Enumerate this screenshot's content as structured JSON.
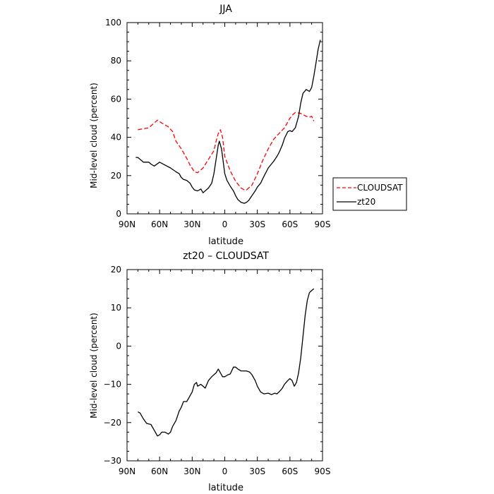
{
  "chart_data": [
    {
      "type": "line",
      "title": "JJA",
      "xlabel": "latitude",
      "ylabel": "Mid-level cloud (percent)",
      "xlim": [
        90,
        -90
      ],
      "ylim": [
        0,
        100
      ],
      "xticks": [
        90,
        60,
        30,
        0,
        -30,
        -60,
        -90
      ],
      "xtick_labels": [
        "90N",
        "60N",
        "30N",
        "0",
        "30S",
        "60S",
        "90S"
      ],
      "yticks": [
        0,
        20,
        40,
        60,
        80,
        100
      ],
      "ytick_labels": [
        "0",
        "20",
        "40",
        "60",
        "80",
        "100"
      ],
      "grid": false,
      "legend": {
        "placement": "right-outside",
        "entries": [
          "CLOUDSAT",
          "zt20"
        ]
      },
      "series": [
        {
          "name": "CLOUDSAT",
          "color": "#ff0000",
          "dash": true,
          "x": [
            80,
            75,
            70,
            65,
            62,
            58,
            55,
            52,
            48,
            45,
            40,
            35,
            32,
            28,
            25,
            20,
            15,
            10,
            8,
            6,
            4,
            2,
            0,
            -5,
            -10,
            -15,
            -18,
            -20,
            -25,
            -30,
            -35,
            -40,
            -45,
            -50,
            -55,
            -60,
            -63,
            -65,
            -70,
            -75,
            -78,
            -80,
            -82
          ],
          "y": [
            44,
            44.5,
            45,
            47.5,
            49,
            47.5,
            46.5,
            45.5,
            43,
            38,
            34,
            29,
            25.5,
            22,
            21.5,
            24,
            28.5,
            33,
            38,
            42,
            44,
            40,
            30,
            22.5,
            17,
            13.5,
            12.5,
            12.5,
            15,
            21,
            28,
            34,
            39,
            42,
            45,
            50,
            52,
            53,
            52.5,
            51,
            50.5,
            51,
            48.5
          ]
        },
        {
          "name": "zt20",
          "color": "#000000",
          "dash": false,
          "x": [
            82,
            80,
            75,
            70,
            68,
            65,
            60,
            55,
            50,
            45,
            42,
            40,
            38,
            35,
            32,
            30,
            28,
            25,
            22,
            20,
            15,
            12,
            10,
            8,
            6,
            5,
            3,
            0,
            -2,
            -5,
            -8,
            -10,
            -12,
            -15,
            -18,
            -20,
            -22,
            -25,
            -28,
            -30,
            -33,
            -35,
            -40,
            -45,
            -48,
            -50,
            -53,
            -55,
            -58,
            -60,
            -62,
            -65,
            -68,
            -70,
            -72,
            -75,
            -78,
            -80,
            -82,
            -84,
            -86,
            -88
          ],
          "y": [
            29.5,
            29.5,
            27,
            27,
            26,
            25,
            27,
            25.5,
            24,
            22,
            21,
            19,
            18,
            17.5,
            16,
            14,
            12.5,
            12,
            13,
            11,
            13.5,
            16,
            21,
            28.5,
            36,
            38,
            34,
            21,
            17.5,
            14.5,
            12,
            9.5,
            7.5,
            6,
            5.5,
            6,
            7,
            9.5,
            12,
            14,
            16,
            18.5,
            24,
            27.5,
            30,
            32,
            36,
            39.5,
            43,
            43.5,
            43,
            45,
            51,
            58,
            63,
            65,
            64,
            66,
            72,
            79,
            86,
            91
          ]
        }
      ]
    },
    {
      "type": "line",
      "title": "zt20 – CLOUDSAT",
      "xlabel": "latitude",
      "ylabel": "Mid-level cloud (percent)",
      "xlim": [
        90,
        -90
      ],
      "ylim": [
        -30,
        20
      ],
      "xticks": [
        90,
        60,
        30,
        0,
        -30,
        -60,
        -90
      ],
      "xtick_labels": [
        "90N",
        "60N",
        "30N",
        "0",
        "30S",
        "60S",
        "90S"
      ],
      "yticks": [
        -30,
        -20,
        -10,
        0,
        10,
        20
      ],
      "ytick_labels": [
        "−30",
        "−20",
        "−10",
        "0",
        "10",
        "20"
      ],
      "grid": false,
      "series": [
        {
          "name": "zt20 – CLOUDSAT",
          "color": "#000000",
          "dash": false,
          "x": [
            80,
            78,
            75,
            72,
            68,
            65,
            62,
            60,
            58,
            55,
            52,
            50,
            48,
            45,
            42,
            40,
            38,
            35,
            33,
            30,
            28,
            26,
            25,
            22,
            20,
            18,
            15,
            12,
            10,
            8,
            6,
            4,
            2,
            0,
            -3,
            -5,
            -8,
            -10,
            -12,
            -15,
            -18,
            -20,
            -23,
            -25,
            -28,
            -30,
            -33,
            -36,
            -40,
            -43,
            -46,
            -48,
            -50,
            -53,
            -55,
            -58,
            -60,
            -62,
            -64,
            -66,
            -68,
            -70,
            -72,
            -74,
            -76,
            -78,
            -80,
            -82
          ],
          "y": [
            -17.2,
            -17.5,
            -19,
            -20.2,
            -20.5,
            -22,
            -23.5,
            -23.2,
            -22.5,
            -22.5,
            -23,
            -22.5,
            -21,
            -19.5,
            -17,
            -16,
            -14.5,
            -14.5,
            -13.5,
            -12,
            -10,
            -9.5,
            -10.5,
            -10,
            -10.5,
            -11,
            -9,
            -8,
            -7.5,
            -7,
            -6,
            -7,
            -8,
            -8,
            -7.5,
            -7.3,
            -5.5,
            -5.5,
            -6,
            -6.5,
            -6.5,
            -6.5,
            -6.8,
            -7.5,
            -9,
            -10.5,
            -12,
            -12.5,
            -12.3,
            -12.7,
            -12.3,
            -12.5,
            -12,
            -11,
            -10,
            -9,
            -8.5,
            -9,
            -10.5,
            -9.5,
            -7,
            -3,
            2.5,
            8,
            12,
            14,
            14.5,
            15
          ]
        }
      ]
    }
  ]
}
